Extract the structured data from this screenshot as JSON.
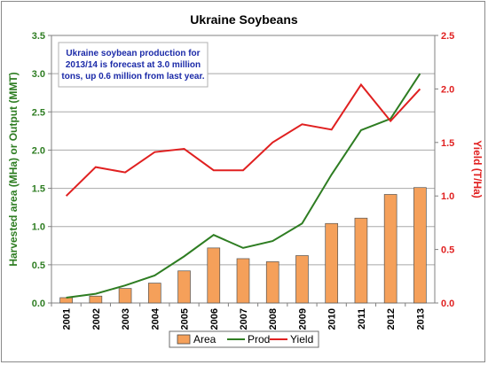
{
  "chart_data": {
    "type": "bar+line",
    "title": "Ukraine  Soybeans",
    "categories": [
      "2001",
      "2002",
      "2003",
      "2004",
      "2005",
      "2006",
      "2007",
      "2008",
      "2009",
      "2010",
      "2011",
      "2012",
      "2013"
    ],
    "series": [
      {
        "name": "Area",
        "type": "bar",
        "axis": "left",
        "color": "#f5a05a",
        "values": [
          0.07,
          0.09,
          0.19,
          0.26,
          0.42,
          0.72,
          0.58,
          0.54,
          0.62,
          1.04,
          1.11,
          1.42,
          1.51
        ]
      },
      {
        "name": "Prod",
        "type": "line",
        "axis": "left",
        "color": "#2e7d22",
        "values": [
          0.07,
          0.12,
          0.23,
          0.36,
          0.61,
          0.89,
          0.72,
          0.81,
          1.04,
          1.68,
          2.26,
          2.41,
          3.0
        ]
      },
      {
        "name": "Yield",
        "type": "line",
        "axis": "right",
        "color": "#e02020",
        "values": [
          1.0,
          1.27,
          1.22,
          1.41,
          1.44,
          1.24,
          1.24,
          1.5,
          1.67,
          1.62,
          2.04,
          1.7,
          2.0
        ]
      }
    ],
    "ylabel_left": "Harvested area (MHa) or Output (MMT)",
    "ylabel_right": "Yield (T/Ha)",
    "ylim_left": [
      0,
      3.5
    ],
    "ylim_right": [
      0,
      2.5
    ],
    "yticks_left": [
      "0.0",
      "0.5",
      "1.0",
      "1.5",
      "2.0",
      "2.5",
      "3.0",
      "3.5"
    ],
    "yticks_right": [
      "0.0",
      "0.5",
      "1.0",
      "1.5",
      "2.0",
      "2.5"
    ],
    "grid": true,
    "legend_position": "bottom",
    "annotation": [
      "Ukraine soybean production for",
      "2013/14 is forecast at 3.0 million",
      "tons, up 0.6 million from last year."
    ]
  }
}
